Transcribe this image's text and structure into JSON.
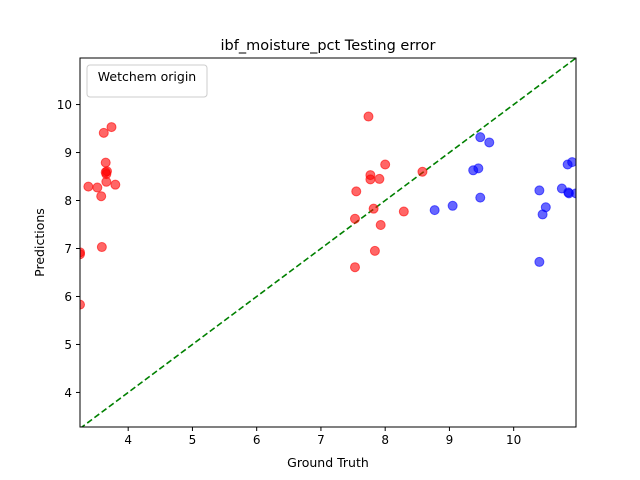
{
  "chart_data": {
    "type": "scatter",
    "title": "ibf_moisture_pct Testing error",
    "xlabel": "Ground Truth",
    "ylabel": "Predictions",
    "xlim": [
      3.25,
      10.97
    ],
    "ylim": [
      3.28,
      10.97
    ],
    "xticks": [
      4,
      5,
      6,
      7,
      8,
      9,
      10
    ],
    "yticks": [
      4,
      5,
      6,
      7,
      8,
      9,
      10
    ],
    "grid": false,
    "legend": {
      "title": "Wetchem origin",
      "placement": "top-left"
    },
    "reference_line": {
      "kind": "identity",
      "color": "#008000",
      "style": "dashed"
    },
    "series": [
      {
        "color": "#ff0000",
        "points": [
          [
            3.25,
            6.92
          ],
          [
            3.25,
            6.88
          ],
          [
            3.25,
            5.83
          ],
          [
            3.38,
            8.29
          ],
          [
            3.52,
            8.27
          ],
          [
            3.58,
            8.09
          ],
          [
            3.59,
            7.03
          ],
          [
            3.62,
            9.41
          ],
          [
            3.65,
            8.79
          ],
          [
            3.65,
            8.59
          ],
          [
            3.66,
            8.55
          ],
          [
            3.67,
            8.61
          ],
          [
            3.66,
            8.39
          ],
          [
            3.74,
            9.53
          ],
          [
            3.8,
            8.33
          ],
          [
            7.53,
            6.61
          ],
          [
            7.53,
            7.62
          ],
          [
            7.55,
            8.19
          ],
          [
            7.74,
            9.75
          ],
          [
            7.77,
            8.53
          ],
          [
            7.77,
            8.44
          ],
          [
            7.82,
            7.83
          ],
          [
            7.84,
            6.95
          ],
          [
            7.91,
            8.45
          ],
          [
            7.93,
            7.49
          ],
          [
            8.0,
            8.75
          ],
          [
            8.29,
            7.77
          ],
          [
            8.58,
            8.6
          ]
        ]
      },
      {
        "color": "#0000ff",
        "points": [
          [
            8.77,
            7.8
          ],
          [
            9.05,
            7.89
          ],
          [
            9.37,
            8.63
          ],
          [
            9.45,
            8.67
          ],
          [
            9.48,
            9.32
          ],
          [
            9.48,
            8.06
          ],
          [
            9.62,
            9.21
          ],
          [
            10.4,
            6.72
          ],
          [
            10.4,
            8.21
          ],
          [
            10.45,
            7.71
          ],
          [
            10.5,
            7.86
          ],
          [
            10.75,
            8.25
          ],
          [
            10.84,
            8.75
          ],
          [
            10.85,
            8.17
          ],
          [
            10.86,
            8.15
          ],
          [
            10.91,
            8.8
          ],
          [
            10.97,
            8.15
          ]
        ]
      }
    ]
  }
}
